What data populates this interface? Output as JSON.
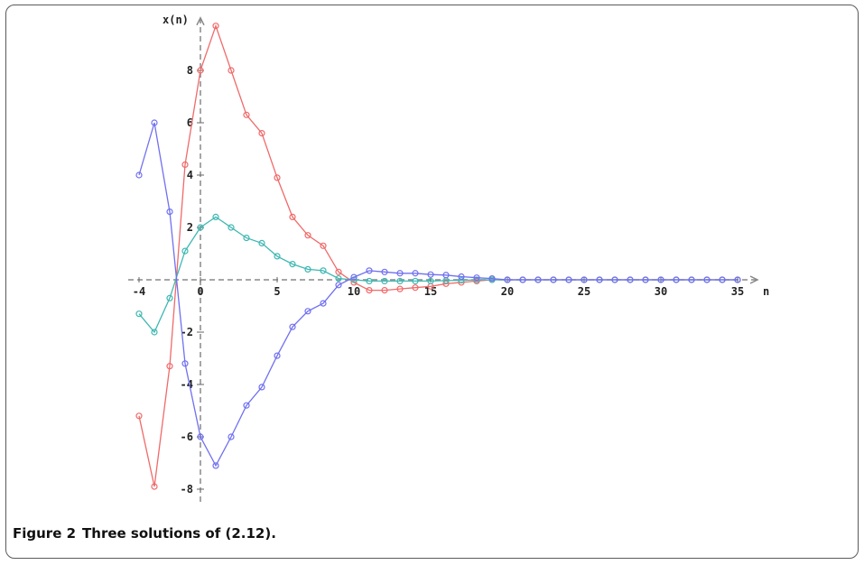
{
  "caption": {
    "figure_label": "Figure 2",
    "text": "Three solutions of (2.12)."
  },
  "chart_data": {
    "type": "line",
    "xlabel": "n",
    "ylabel": "x(n)",
    "xlim": [
      -4,
      35
    ],
    "ylim": [
      -8,
      9.8
    ],
    "x_ticks": [
      -4,
      0,
      5,
      10,
      15,
      20,
      25,
      30,
      35
    ],
    "x_tick_labels": [
      "-4",
      "0",
      "5",
      "10",
      "15",
      "20",
      "25",
      "30",
      "35"
    ],
    "y_ticks": [
      -8,
      -6,
      -4,
      -2,
      2,
      4,
      6,
      8
    ],
    "y_tick_labels": [
      "-8",
      "-6",
      "-4",
      "-2",
      "2",
      "4",
      "6",
      "8"
    ],
    "axis_style": "dashed",
    "grid": false,
    "legend": "none",
    "series": [
      {
        "color": "#f06a6a",
        "x": [
          -4,
          -3,
          -2,
          -1,
          0,
          1,
          2,
          3,
          4,
          5,
          6,
          7,
          8,
          9,
          10,
          11,
          12,
          13,
          14,
          15,
          16,
          17,
          18,
          19,
          20,
          21,
          22,
          23,
          24,
          25,
          26,
          27,
          28,
          29,
          30,
          31,
          32,
          33,
          34,
          35
        ],
        "y": [
          -5.2,
          -7.9,
          -3.3,
          4.4,
          8.0,
          9.7,
          8.0,
          6.3,
          5.6,
          3.9,
          2.4,
          1.7,
          1.3,
          0.3,
          -0.1,
          -0.4,
          -0.4,
          -0.35,
          -0.3,
          -0.25,
          -0.15,
          -0.1,
          -0.05,
          0,
          0,
          0,
          0,
          0,
          0,
          0,
          0,
          0,
          0,
          0,
          0,
          0,
          0,
          0,
          0,
          0
        ]
      },
      {
        "color": "#3fb8b2",
        "x": [
          -4,
          -3,
          -2,
          -1,
          0,
          1,
          2,
          3,
          4,
          5,
          6,
          7,
          8,
          9,
          10,
          11,
          12,
          13,
          14,
          15,
          16,
          17,
          18,
          19,
          20,
          21,
          22,
          23,
          24,
          25,
          26,
          27,
          28,
          29,
          30,
          31,
          32,
          33,
          34,
          35
        ],
        "y": [
          -1.3,
          -2.0,
          -0.7,
          1.1,
          2.0,
          2.4,
          2.0,
          1.6,
          1.4,
          0.9,
          0.6,
          0.4,
          0.35,
          0.05,
          0,
          -0.05,
          -0.05,
          -0.05,
          -0.05,
          -0.05,
          -0.03,
          -0.02,
          0,
          0,
          0,
          0,
          0,
          0,
          0,
          0,
          0,
          0,
          0,
          0,
          0,
          0,
          0,
          0,
          0,
          0
        ]
      },
      {
        "color": "#7070f0",
        "x": [
          -4,
          -3,
          -2,
          -1,
          0,
          1,
          2,
          3,
          4,
          5,
          6,
          7,
          8,
          9,
          10,
          11,
          12,
          13,
          14,
          15,
          16,
          17,
          18,
          19,
          20,
          21,
          22,
          23,
          24,
          25,
          26,
          27,
          28,
          29,
          30,
          31,
          32,
          33,
          34,
          35
        ],
        "y": [
          4.0,
          6.0,
          2.6,
          -3.2,
          -6.0,
          -7.1,
          -6.0,
          -4.8,
          -4.1,
          -2.9,
          -1.8,
          -1.2,
          -0.9,
          -0.2,
          0.1,
          0.35,
          0.3,
          0.25,
          0.25,
          0.2,
          0.18,
          0.12,
          0.08,
          0.05,
          0,
          0,
          0,
          0,
          0,
          0,
          0,
          0,
          0,
          0,
          0,
          0,
          0,
          0,
          0,
          0
        ]
      }
    ]
  }
}
